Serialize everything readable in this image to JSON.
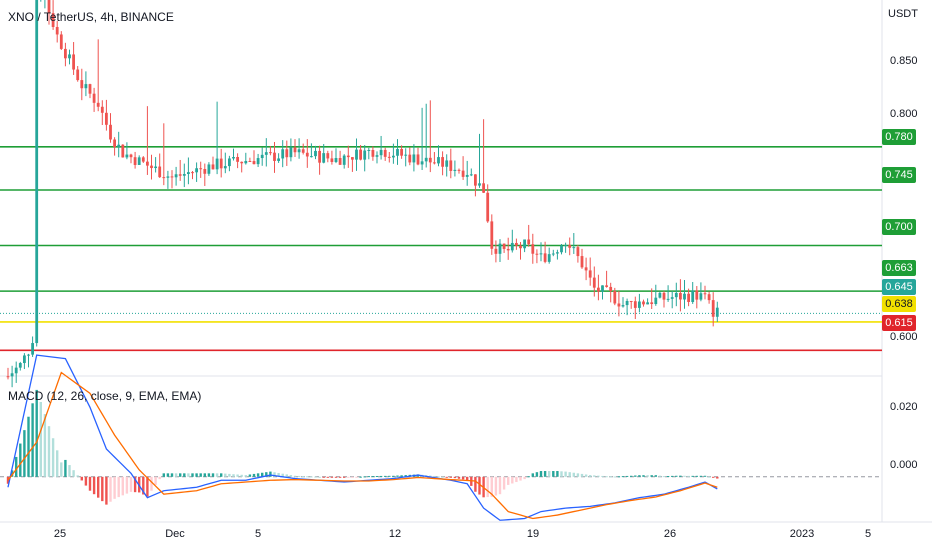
{
  "symbol_title": "XNO / TetherUS, 4h, BINANCE",
  "quote_currency": "USDT",
  "macd_title": "MACD (12, 26, close, 9, EMA, EMA)",
  "price_axis_ticks": [
    "0.850",
    "0.800",
    "0.600"
  ],
  "macd_axis_ticks": [
    "0.020",
    "0.000"
  ],
  "time_axis_ticks": [
    "25",
    "Dec",
    "5",
    "12",
    "19",
    "26",
    "2023",
    "5"
  ],
  "horizontal_levels": [
    {
      "label": "0.780",
      "value": 0.78,
      "color": "#1e9e36"
    },
    {
      "label": "0.745",
      "value": 0.745,
      "color": "#1e9e36"
    },
    {
      "label": "0.700",
      "value": 0.7,
      "color": "#1e9e36"
    },
    {
      "label": "0.663",
      "value": 0.663,
      "color": "#1e9e36"
    },
    {
      "label": "0.638",
      "value": 0.638,
      "color": "#f2e000"
    },
    {
      "label": "0.615",
      "value": 0.615,
      "color": "#e0252b"
    }
  ],
  "last_price": {
    "label": "0.645",
    "value": 0.645,
    "color": "#26a69a"
  },
  "colors": {
    "up": "#26a69a",
    "down": "#ef5350",
    "macd_line": "#2962ff",
    "signal_line": "#ff6d00"
  },
  "chart_data": {
    "type": "candlestick",
    "price_axis": {
      "ylim": [
        0.595,
        0.895
      ]
    },
    "macd_axis": {
      "ylim": [
        -0.013,
        0.029
      ]
    },
    "candle_close_path": [
      [
        0,
        0.594
      ],
      [
        3,
        0.603
      ],
      [
        5,
        0.615
      ],
      [
        6,
        0.625
      ],
      [
        7,
        0.9
      ],
      [
        9,
        0.9
      ],
      [
        12,
        0.87
      ],
      [
        18,
        0.83
      ],
      [
        22,
        0.815
      ],
      [
        25,
        0.79
      ],
      [
        28,
        0.775
      ],
      [
        34,
        0.765
      ],
      [
        40,
        0.755
      ],
      [
        50,
        0.765
      ],
      [
        60,
        0.77
      ],
      [
        70,
        0.775
      ],
      [
        80,
        0.77
      ],
      [
        90,
        0.778
      ],
      [
        100,
        0.77
      ],
      [
        106,
        0.766
      ],
      [
        112,
        0.76
      ],
      [
        116,
        0.745
      ],
      [
        118,
        0.7
      ],
      [
        121,
        0.695
      ],
      [
        126,
        0.7
      ],
      [
        130,
        0.69
      ],
      [
        133,
        0.695
      ],
      [
        136,
        0.705
      ],
      [
        140,
        0.685
      ],
      [
        143,
        0.665
      ],
      [
        147,
        0.66
      ],
      [
        150,
        0.652
      ],
      [
        156,
        0.655
      ],
      [
        162,
        0.658
      ],
      [
        168,
        0.66
      ],
      [
        171,
        0.655
      ],
      [
        172,
        0.64
      ],
      [
        173,
        0.645
      ]
    ],
    "macd_line_path": [
      [
        0,
        -0.003
      ],
      [
        7,
        0.035
      ],
      [
        14,
        0.034
      ],
      [
        20,
        0.02
      ],
      [
        24,
        0.008
      ],
      [
        30,
        0.001
      ],
      [
        34,
        -0.006
      ],
      [
        38,
        -0.004
      ],
      [
        46,
        -0.003
      ],
      [
        52,
        -0.001
      ],
      [
        58,
        -0.001
      ],
      [
        64,
        0.0005
      ],
      [
        70,
        -0.0005
      ],
      [
        76,
        -0.001
      ],
      [
        82,
        -0.0015
      ],
      [
        88,
        -0.001
      ],
      [
        94,
        -0.0005
      ],
      [
        100,
        0.0005
      ],
      [
        108,
        -0.001
      ],
      [
        112,
        -0.002
      ],
      [
        116,
        -0.009
      ],
      [
        120,
        -0.0125
      ],
      [
        126,
        -0.012
      ],
      [
        130,
        -0.01
      ],
      [
        136,
        -0.009
      ],
      [
        142,
        -0.0085
      ],
      [
        148,
        -0.0075
      ],
      [
        154,
        -0.006
      ],
      [
        160,
        -0.005
      ],
      [
        166,
        -0.003
      ],
      [
        170,
        -0.0015
      ],
      [
        173,
        -0.0035
      ]
    ],
    "signal_line_path": [
      [
        0,
        -0.001
      ],
      [
        7,
        0.01
      ],
      [
        13,
        0.03
      ],
      [
        20,
        0.024
      ],
      [
        26,
        0.012
      ],
      [
        32,
        0.002
      ],
      [
        38,
        -0.005
      ],
      [
        46,
        -0.004
      ],
      [
        52,
        -0.002
      ],
      [
        58,
        -0.0015
      ],
      [
        64,
        -0.001
      ],
      [
        70,
        -0.0008
      ],
      [
        76,
        -0.001
      ],
      [
        82,
        -0.0012
      ],
      [
        88,
        -0.0012
      ],
      [
        94,
        -0.0008
      ],
      [
        100,
        -0.0002
      ],
      [
        108,
        -0.0008
      ],
      [
        114,
        -0.0012
      ],
      [
        118,
        -0.005
      ],
      [
        122,
        -0.01
      ],
      [
        128,
        -0.012
      ],
      [
        134,
        -0.011
      ],
      [
        140,
        -0.0095
      ],
      [
        146,
        -0.008
      ],
      [
        152,
        -0.0068
      ],
      [
        158,
        -0.0058
      ],
      [
        164,
        -0.004
      ],
      [
        170,
        -0.0018
      ],
      [
        173,
        -0.003
      ]
    ],
    "candle_count": 174
  }
}
